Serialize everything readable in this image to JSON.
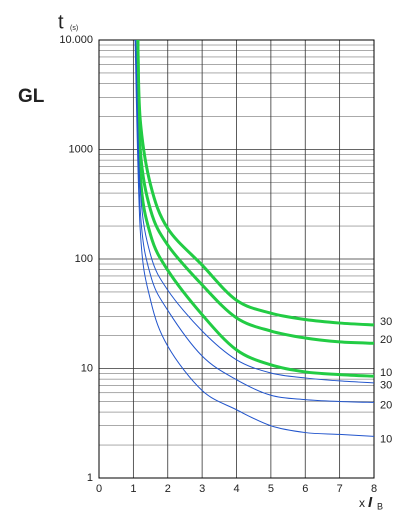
{
  "chart_data": {
    "type": "line",
    "title": "GL",
    "y_label": "t",
    "y_label_sub": "(s)",
    "x_label": "x",
    "x_label_var": "I",
    "x_label_sub": "B",
    "log_y": true,
    "grid": true,
    "xlim": [
      0,
      8
    ],
    "ylim": [
      1,
      10000
    ],
    "xticks": [
      0,
      1,
      2,
      3,
      4,
      5,
      6,
      7,
      8
    ],
    "yticks": [
      1,
      10,
      100,
      1000,
      {
        "value": 10000,
        "label": "10.000"
      }
    ],
    "series": [
      {
        "name": "30",
        "color": "#22cc44",
        "width": 3,
        "x": [
          1.13,
          1.2,
          1.5,
          2,
          3,
          4,
          5,
          6,
          7,
          8
        ],
        "values": [
          10000,
          1860,
          475,
          190,
          88,
          42,
          32,
          28,
          26,
          25
        ]
      },
      {
        "name": "20",
        "color": "#22cc44",
        "width": 3,
        "x": [
          1.13,
          1.2,
          1.5,
          2,
          3,
          4,
          5,
          6,
          7,
          8
        ],
        "values": [
          10000,
          1000,
          280,
          134,
          58,
          29,
          22,
          19,
          17.5,
          17
        ]
      },
      {
        "name": "10",
        "color": "#22cc44",
        "width": 3,
        "x": [
          1.13,
          1.2,
          1.5,
          2,
          3,
          4,
          5,
          6,
          7,
          8
        ],
        "values": [
          10000,
          590,
          166,
          79,
          31,
          14.8,
          10.8,
          9.3,
          8.8,
          8.5
        ]
      },
      {
        "name": "30",
        "color": "#2255cc",
        "width": 1,
        "x": [
          1.07,
          1.2,
          1.5,
          2,
          3,
          4,
          5,
          6,
          7,
          8
        ],
        "values": [
          10000,
          430,
          109,
          52,
          22,
          12,
          9.1,
          8.2,
          7.7,
          7.4
        ]
      },
      {
        "name": "20",
        "color": "#2255cc",
        "width": 1,
        "x": [
          1.06,
          1.2,
          1.5,
          2,
          3,
          4,
          5,
          6,
          7,
          8
        ],
        "values": [
          10000,
          280,
          71,
          34,
          13,
          7.9,
          5.7,
          5.2,
          5.0,
          4.9
        ]
      },
      {
        "name": "10",
        "color": "#2255cc",
        "width": 1,
        "x": [
          1.05,
          1.2,
          1.5,
          2,
          3,
          4,
          5,
          6,
          7,
          8
        ],
        "values": [
          10000,
          183,
          42,
          16,
          6.3,
          4.2,
          3.0,
          2.6,
          2.5,
          2.4
        ]
      }
    ]
  }
}
